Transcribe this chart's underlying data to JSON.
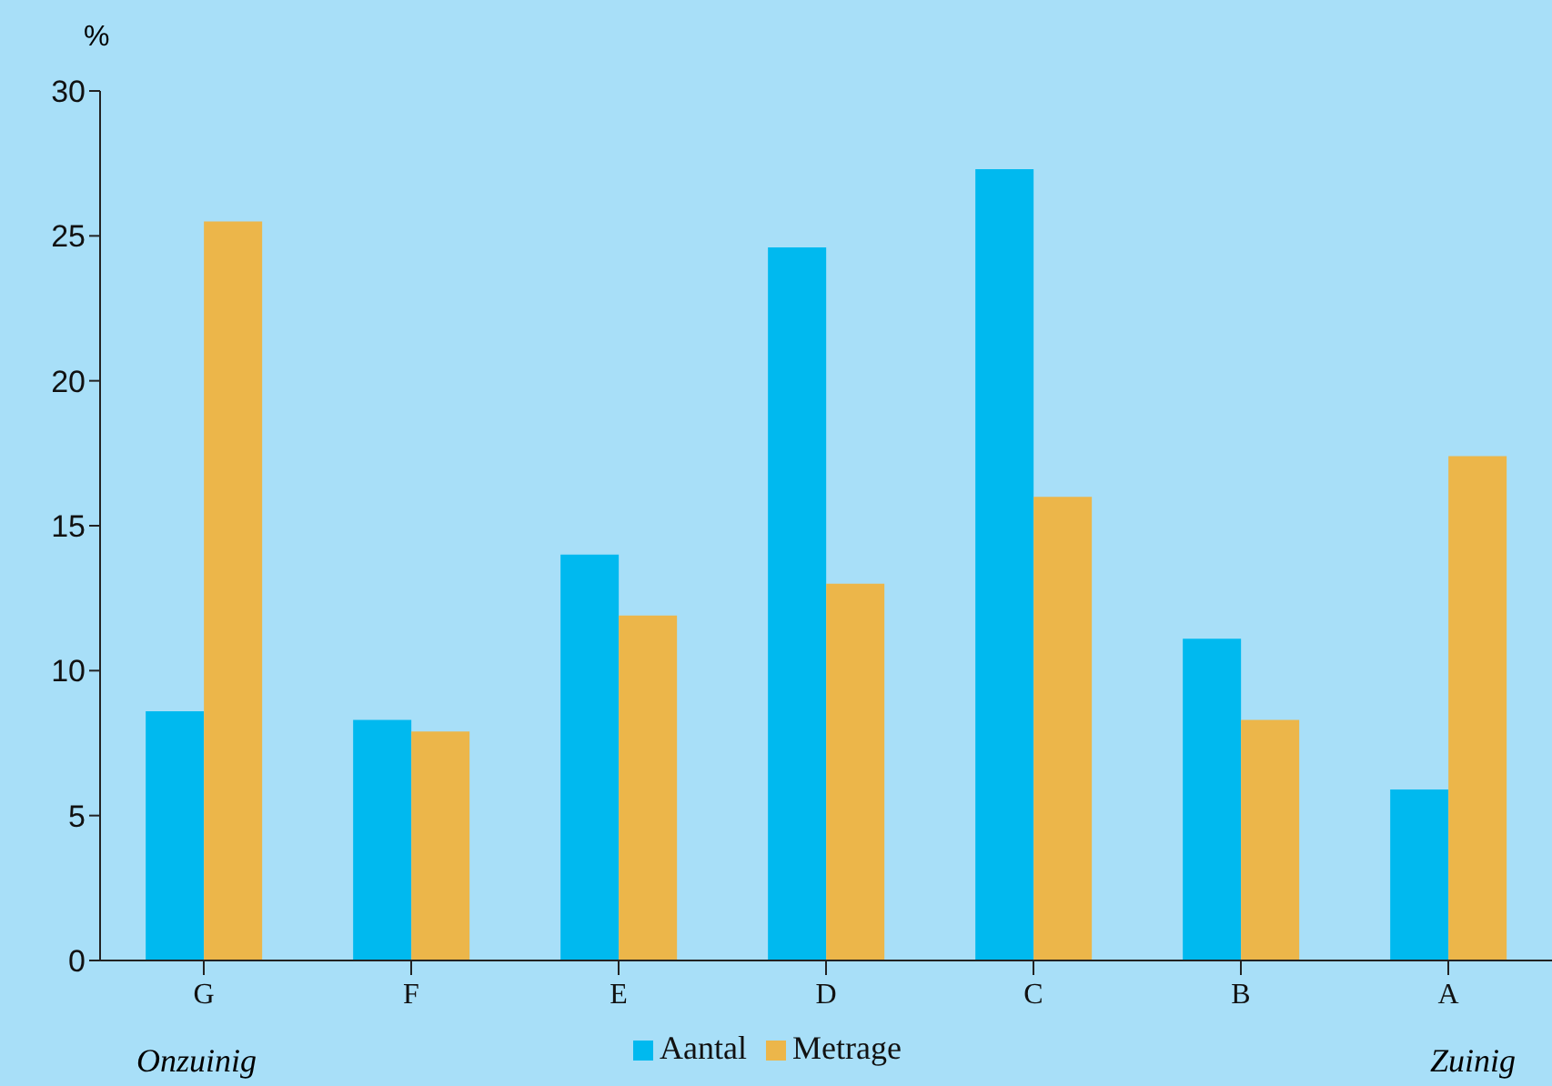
{
  "chart_data": {
    "type": "bar",
    "ylabel": "%",
    "categories": [
      "G",
      "F",
      "E",
      "D",
      "C",
      "B",
      "A"
    ],
    "series": [
      {
        "name": "Aantal",
        "color": "#00b9ef",
        "values": [
          8.6,
          8.3,
          14.0,
          24.6,
          27.3,
          11.1,
          5.9
        ]
      },
      {
        "name": "Metrage",
        "color": "#ecb64a",
        "values": [
          25.5,
          7.9,
          11.9,
          13.0,
          16.0,
          8.3,
          17.4
        ]
      }
    ],
    "ylim": [
      0,
      30
    ],
    "yticks": [
      0,
      5,
      10,
      15,
      20,
      25,
      30
    ],
    "grid": false,
    "legend": "bottom",
    "annotations": [
      "Onzuinig",
      "Zuinig"
    ]
  }
}
